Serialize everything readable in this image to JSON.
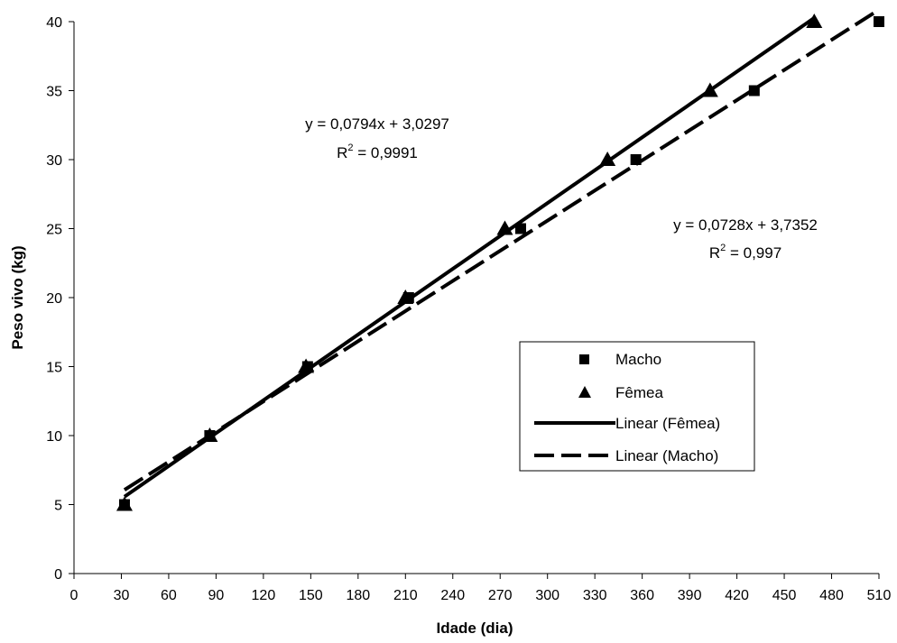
{
  "chart_data": {
    "type": "scatter",
    "title": "",
    "xlabel": "Idade (dia)",
    "ylabel": "Peso  vivo (kg)",
    "xlim": [
      0,
      510
    ],
    "ylim": [
      0,
      40
    ],
    "xticks": [
      0,
      30,
      60,
      90,
      120,
      150,
      180,
      210,
      240,
      270,
      300,
      330,
      360,
      390,
      420,
      450,
      480,
      510
    ],
    "yticks": [
      0,
      5,
      10,
      15,
      20,
      25,
      30,
      35,
      40
    ],
    "grid": false,
    "legend_position": "center-right",
    "series": [
      {
        "name": "Macho",
        "marker": "square",
        "color": "#000000",
        "points": [
          {
            "x": 32,
            "y": 5
          },
          {
            "x": 86,
            "y": 10
          },
          {
            "x": 148,
            "y": 15
          },
          {
            "x": 212,
            "y": 20
          },
          {
            "x": 283,
            "y": 25
          },
          {
            "x": 356,
            "y": 30
          },
          {
            "x": 431,
            "y": 35
          },
          {
            "x": 510,
            "y": 40
          }
        ]
      },
      {
        "name": "Fêmea",
        "marker": "triangle",
        "color": "#000000",
        "points": [
          {
            "x": 32,
            "y": 5
          },
          {
            "x": 86,
            "y": 10
          },
          {
            "x": 147,
            "y": 15
          },
          {
            "x": 210,
            "y": 20
          },
          {
            "x": 273,
            "y": 25
          },
          {
            "x": 338,
            "y": 30
          },
          {
            "x": 403,
            "y": 35
          },
          {
            "x": 469,
            "y": 40
          }
        ]
      }
    ],
    "trendlines": [
      {
        "name": "Linear (Fêmea)",
        "style": "solid",
        "slope": 0.0794,
        "intercept": 3.0297,
        "x_range": [
          32,
          469
        ],
        "equation": "y = 0,0794x + 3,0297",
        "r2_prefix": "R",
        "r2_exp": "2",
        "r2_value": " = 0,9991"
      },
      {
        "name": "Linear (Macho)",
        "style": "dashed",
        "slope": 0.0728,
        "intercept": 3.7352,
        "x_range": [
          32,
          510
        ],
        "equation": "y = 0,0728x + 3,7352",
        "r2_prefix": "R",
        "r2_exp": "2",
        "r2_value": " = 0,997"
      }
    ],
    "legend": [
      {
        "label": "Macho",
        "marker": "square"
      },
      {
        "label": "Fêmea",
        "marker": "triangle"
      },
      {
        "label": "Linear (Fêmea)",
        "marker": "solid-line"
      },
      {
        "label": "Linear (Macho)",
        "marker": "dashed-line"
      }
    ]
  }
}
